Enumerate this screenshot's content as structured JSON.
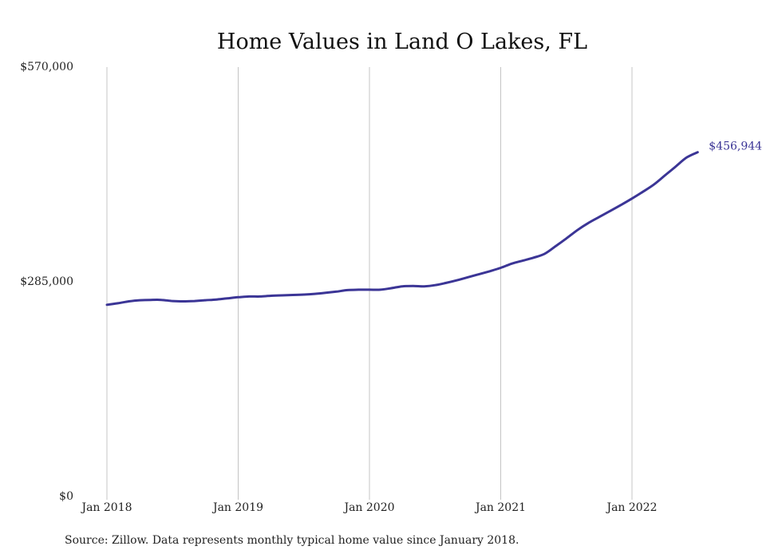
{
  "chart_data": {
    "type": "line",
    "title": "Home Values in Land O Lakes, FL",
    "xlabel": "",
    "ylabel": "",
    "ylim": [
      0,
      570000
    ],
    "yticks": [
      {
        "value": 0,
        "label": "$0"
      },
      {
        "value": 285000,
        "label": "$285,000"
      },
      {
        "value": 570000,
        "label": "$570,000"
      }
    ],
    "xticks": [
      {
        "value": "2018-01",
        "label": "Jan 2018"
      },
      {
        "value": "2019-01",
        "label": "Jan 2019"
      },
      {
        "value": "2020-01",
        "label": "Jan 2020"
      },
      {
        "value": "2021-01",
        "label": "Jan 2021"
      },
      {
        "value": "2022-01",
        "label": "Jan 2022"
      }
    ],
    "grid": {
      "vertical": true,
      "horizontal": false
    },
    "legend": "none",
    "series": [
      {
        "color": "#3b3596",
        "x": [
          "2018-01",
          "2018-02",
          "2018-03",
          "2018-04",
          "2018-05",
          "2018-06",
          "2018-07",
          "2018-08",
          "2018-09",
          "2018-10",
          "2018-11",
          "2018-12",
          "2019-01",
          "2019-02",
          "2019-03",
          "2019-04",
          "2019-05",
          "2019-06",
          "2019-07",
          "2019-08",
          "2019-09",
          "2019-10",
          "2019-11",
          "2019-12",
          "2020-01",
          "2020-02",
          "2020-03",
          "2020-04",
          "2020-05",
          "2020-06",
          "2020-07",
          "2020-08",
          "2020-09",
          "2020-10",
          "2020-11",
          "2020-12",
          "2021-01",
          "2021-02",
          "2021-03",
          "2021-04",
          "2021-05",
          "2021-06",
          "2021-07",
          "2021-08",
          "2021-09",
          "2021-10",
          "2021-11",
          "2021-12",
          "2022-01",
          "2022-02",
          "2022-03",
          "2022-04",
          "2022-05",
          "2022-06",
          "2022-07"
        ],
        "values": [
          254500,
          256500,
          259000,
          260500,
          261000,
          261000,
          259500,
          259000,
          259500,
          260500,
          261500,
          263000,
          264500,
          265500,
          265500,
          266500,
          267000,
          267500,
          268000,
          269000,
          270500,
          272000,
          274000,
          274500,
          274500,
          274500,
          276500,
          279000,
          279500,
          279000,
          280500,
          283500,
          287000,
          291000,
          295000,
          299000,
          303500,
          309000,
          313000,
          317000,
          322000,
          332000,
          342500,
          353500,
          363000,
          371000,
          379000,
          387000,
          395500,
          404500,
          414000,
          426000,
          438000,
          450000,
          456944
        ]
      }
    ],
    "end_label": "$456,944"
  },
  "footer": {
    "source": "Source: Zillow. Data represents monthly typical home value since January 2018."
  }
}
